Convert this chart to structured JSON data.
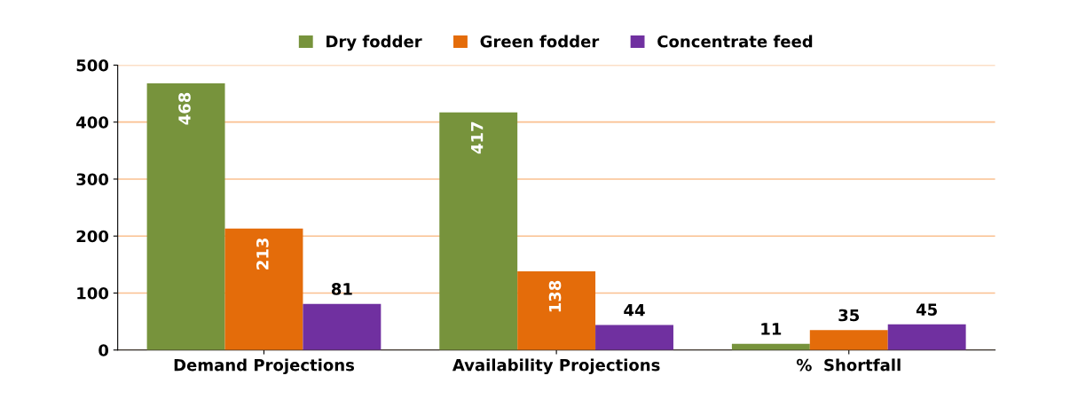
{
  "chart_data": {
    "type": "bar",
    "categories": [
      "Demand Projections",
      "Availability Projections",
      "%  Shortfall"
    ],
    "series": [
      {
        "name": "Dry fodder",
        "color": "#77933c",
        "values": [
          468,
          417,
          11
        ]
      },
      {
        "name": "Green fodder",
        "color": "#e46c0a",
        "values": [
          213,
          138,
          35
        ]
      },
      {
        "name": "Concentrate feed",
        "color": "#7030a0",
        "values": [
          81,
          44,
          45
        ]
      }
    ],
    "ylim": [
      0,
      500
    ],
    "yticks": [
      0,
      100,
      200,
      300,
      400,
      500
    ],
    "grid": "y",
    "legend": "top",
    "data_labels": true
  }
}
